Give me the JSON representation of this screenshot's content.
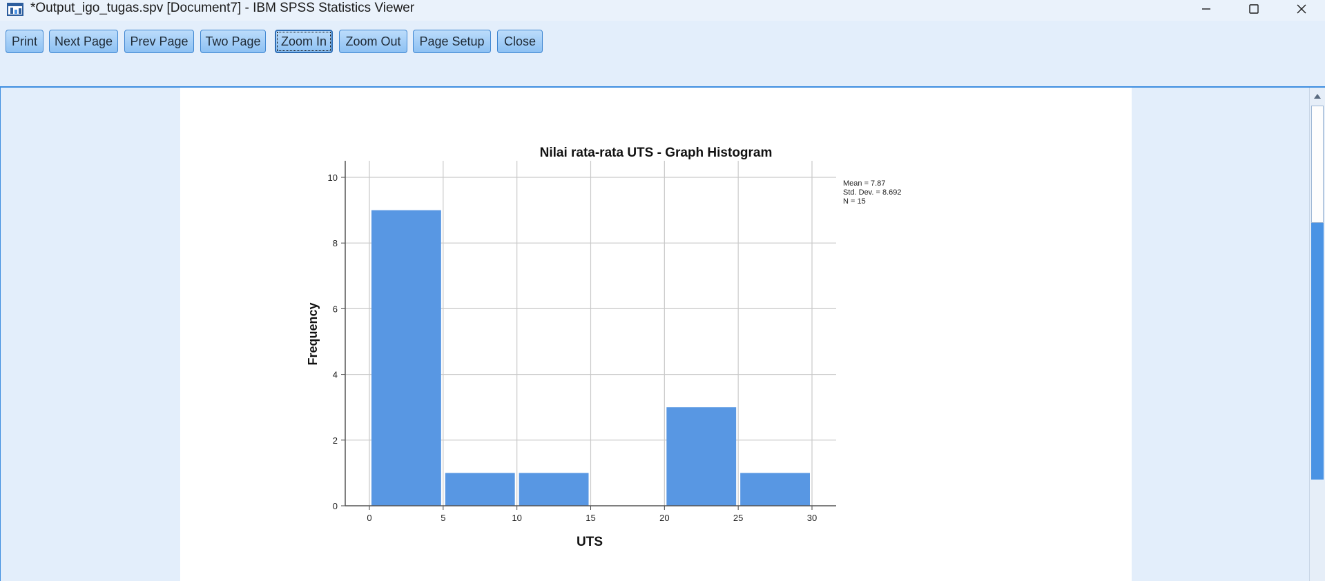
{
  "window": {
    "title": "*Output_igo_tugas.spv [Document7] - IBM SPSS Statistics Viewer"
  },
  "toolbar": {
    "buttons": [
      {
        "label": "Print",
        "mnemonic": "P"
      },
      {
        "label": "Next Page",
        "mnemonic": "N"
      },
      {
        "label": "Prev Page",
        "mnemonic": "v"
      },
      {
        "label": "Two Page",
        "mnemonic": "T"
      },
      {
        "label": "Zoom In",
        "mnemonic": "Z"
      },
      {
        "label": "Zoom Out",
        "mnemonic": "o"
      },
      {
        "label": "Page Setup",
        "mnemonic": "S"
      },
      {
        "label": "Close",
        "mnemonic": "C"
      }
    ]
  },
  "colors": {
    "bar": "#5897e3",
    "accent": "#3d8de0"
  },
  "chart_data": {
    "type": "bar",
    "title": "Nilai rata-rata UTS - Graph Histogram",
    "xlabel": "UTS",
    "ylabel": "Frequency",
    "bins": [
      [
        0,
        5
      ],
      [
        5,
        10
      ],
      [
        10,
        15
      ],
      [
        15,
        20
      ],
      [
        20,
        25
      ],
      [
        25,
        30
      ]
    ],
    "values": [
      9,
      1,
      1,
      0,
      3,
      1
    ],
    "xlim": [
      0,
      30
    ],
    "ylim": [
      0,
      10
    ],
    "x_ticks": [
      "0",
      "5",
      "10",
      "15",
      "20",
      "25",
      "30"
    ],
    "y_ticks": [
      "0",
      "2",
      "4",
      "6",
      "8",
      "10"
    ],
    "grid": true,
    "stats": [
      "Mean = 7.87",
      "Std. Dev. = 8.692",
      "N = 15"
    ]
  }
}
